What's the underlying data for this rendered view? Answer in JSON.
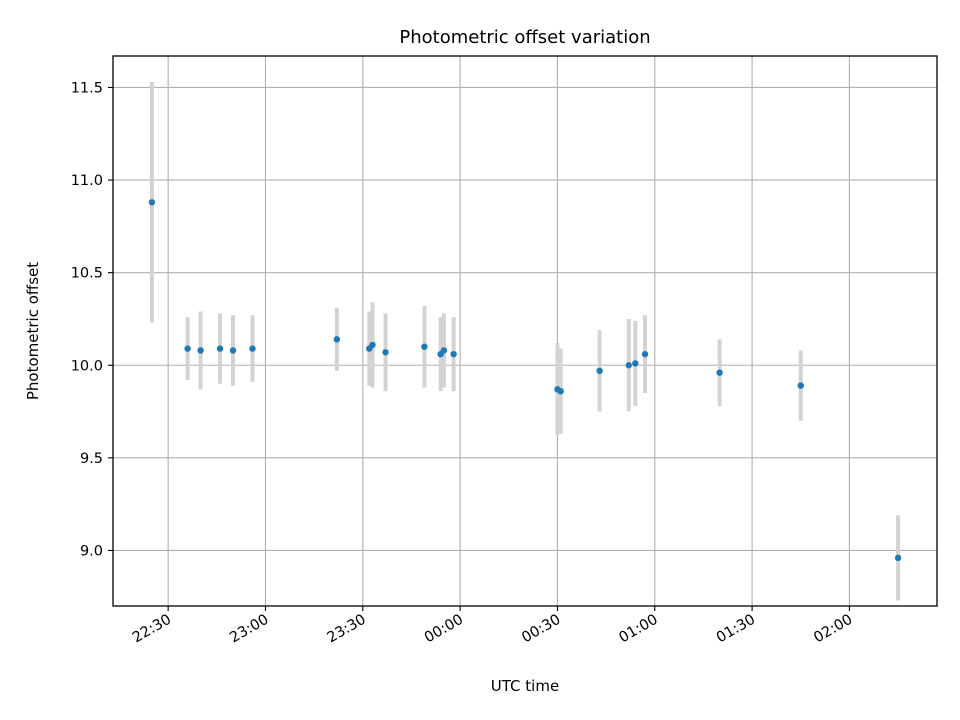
{
  "chart_data": {
    "type": "scatter",
    "title": "Photometric offset variation",
    "xlabel": "UTC time",
    "ylabel": "Photometric offset",
    "x_is_time": true,
    "xlim": [
      "22:13",
      "02:27"
    ],
    "ylim": [
      8.7,
      11.67
    ],
    "grid": true,
    "x_ticks": [
      "22:30",
      "23:00",
      "23:30",
      "00:00",
      "00:30",
      "01:00",
      "01:30",
      "02:00"
    ],
    "y_ticks": [
      "9.0",
      "9.5",
      "10.0",
      "10.5",
      "11.0",
      "11.5"
    ],
    "marker_color": "#1f77b4",
    "errorbar_color": "#d3d3d3",
    "points": [
      {
        "x": "22:25",
        "y": 10.88,
        "yerr": 0.65
      },
      {
        "x": "22:36",
        "y": 10.09,
        "yerr": 0.17
      },
      {
        "x": "22:40",
        "y": 10.08,
        "yerr": 0.21
      },
      {
        "x": "22:46",
        "y": 10.09,
        "yerr": 0.19
      },
      {
        "x": "22:50",
        "y": 10.08,
        "yerr": 0.19
      },
      {
        "x": "22:56",
        "y": 10.09,
        "yerr": 0.18
      },
      {
        "x": "23:22",
        "y": 10.14,
        "yerr": 0.17
      },
      {
        "x": "23:32",
        "y": 10.09,
        "yerr": 0.2
      },
      {
        "x": "23:33",
        "y": 10.11,
        "yerr": 0.23
      },
      {
        "x": "23:37",
        "y": 10.07,
        "yerr": 0.21
      },
      {
        "x": "23:49",
        "y": 10.1,
        "yerr": 0.22
      },
      {
        "x": "23:54",
        "y": 10.06,
        "yerr": 0.2
      },
      {
        "x": "23:55",
        "y": 10.08,
        "yerr": 0.2
      },
      {
        "x": "23:58",
        "y": 10.06,
        "yerr": 0.2
      },
      {
        "x": "00:30",
        "y": 9.87,
        "yerr": 0.25
      },
      {
        "x": "00:31",
        "y": 9.86,
        "yerr": 0.23
      },
      {
        "x": "00:43",
        "y": 9.97,
        "yerr": 0.22
      },
      {
        "x": "00:52",
        "y": 10.0,
        "yerr": 0.25
      },
      {
        "x": "00:54",
        "y": 10.01,
        "yerr": 0.23
      },
      {
        "x": "00:57",
        "y": 10.06,
        "yerr": 0.21
      },
      {
        "x": "01:20",
        "y": 9.96,
        "yerr": 0.18
      },
      {
        "x": "01:45",
        "y": 9.89,
        "yerr": 0.19
      },
      {
        "x": "02:15",
        "y": 8.96,
        "yerr": 0.23
      }
    ]
  }
}
